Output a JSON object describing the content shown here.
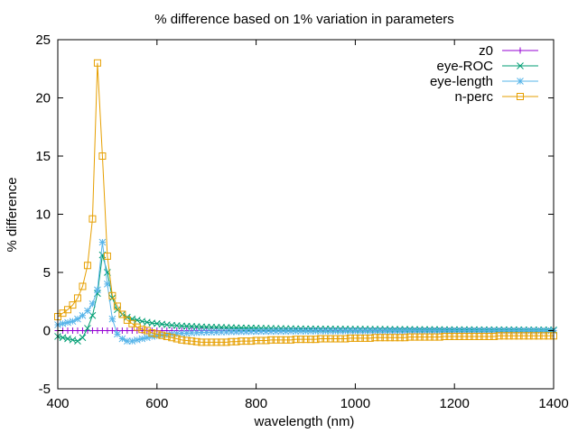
{
  "chart_data": {
    "type": "line",
    "title": "% difference based on 1% variation in parameters",
    "xlabel": "wavelength (nm)",
    "ylabel": "% difference",
    "xlim": [
      400,
      1400
    ],
    "ylim": [
      -5,
      25
    ],
    "xticks": [
      400,
      600,
      800,
      1000,
      1200,
      1400
    ],
    "yticks": [
      -5,
      0,
      5,
      10,
      15,
      20,
      25
    ],
    "grid": false,
    "legend_position": "top-right",
    "x_step": 10,
    "series": [
      {
        "name": "z0",
        "color": "#9400d3",
        "marker": "plus",
        "values": [
          0,
          0,
          0,
          0,
          0,
          0,
          0,
          0,
          0,
          0,
          0,
          0,
          0,
          0,
          0,
          0,
          0,
          0,
          0,
          0,
          0,
          0,
          0,
          0,
          0,
          0,
          0,
          0,
          0,
          0,
          0,
          0,
          0,
          0,
          0,
          0,
          0,
          0,
          0,
          0,
          0,
          0,
          0,
          0,
          0,
          0,
          0,
          0,
          0,
          0,
          0,
          0,
          0,
          0,
          0,
          0,
          0,
          0,
          0,
          0,
          0,
          0,
          0,
          0,
          0,
          0,
          0,
          0,
          0,
          0,
          0,
          0,
          0,
          0,
          0,
          0,
          0,
          0,
          0,
          0,
          0,
          0,
          0,
          0,
          0,
          0,
          0,
          0,
          0,
          0,
          0,
          0,
          0,
          0,
          0,
          0,
          0,
          0,
          0,
          0,
          0
        ]
      },
      {
        "name": "eye-ROC",
        "color": "#009e73",
        "marker": "cross",
        "values": [
          -0.5,
          -0.6,
          -0.7,
          -0.8,
          -0.9,
          -0.6,
          0.2,
          1.3,
          3.2,
          6.5,
          5.0,
          2.8,
          1.8,
          1.4,
          1.15,
          1.0,
          0.9,
          0.8,
          0.72,
          0.65,
          0.6,
          0.55,
          0.5,
          0.46,
          0.43,
          0.4,
          0.38,
          0.36,
          0.34,
          0.32,
          0.3,
          0.29,
          0.28,
          0.27,
          0.26,
          0.25,
          0.24,
          0.23,
          0.22,
          0.22,
          0.21,
          0.2,
          0.2,
          0.19,
          0.18,
          0.18,
          0.17,
          0.17,
          0.16,
          0.16,
          0.15,
          0.15,
          0.15,
          0.14,
          0.14,
          0.14,
          0.13,
          0.13,
          0.13,
          0.12,
          0.12,
          0.12,
          0.12,
          0.11,
          0.11,
          0.11,
          0.11,
          0.1,
          0.1,
          0.1,
          0.1,
          0.1,
          0.09,
          0.09,
          0.09,
          0.09,
          0.09,
          0.09,
          0.08,
          0.08,
          0.08,
          0.08,
          0.08,
          0.08,
          0.08,
          0.07,
          0.07,
          0.07,
          0.07,
          0.07,
          0.07,
          0.07,
          0.07,
          0.07,
          0.06,
          0.06,
          0.06,
          0.06,
          0.06,
          0.06,
          0.06
        ]
      },
      {
        "name": "eye-length",
        "color": "#56b4e9",
        "marker": "star",
        "values": [
          0.5,
          0.6,
          0.7,
          0.8,
          1.0,
          1.3,
          1.7,
          2.3,
          3.5,
          7.6,
          4.0,
          1.0,
          -0.3,
          -0.7,
          -0.9,
          -0.9,
          -0.8,
          -0.7,
          -0.6,
          -0.5,
          -0.45,
          -0.4,
          -0.35,
          -0.3,
          -0.27,
          -0.24,
          -0.22,
          -0.2,
          -0.18,
          -0.16,
          -0.15,
          -0.14,
          -0.13,
          -0.12,
          -0.11,
          -0.1,
          -0.1,
          -0.09,
          -0.09,
          -0.08,
          -0.08,
          -0.07,
          -0.07,
          -0.07,
          -0.06,
          -0.06,
          -0.06,
          -0.05,
          -0.05,
          -0.05,
          -0.05,
          -0.05,
          -0.04,
          -0.04,
          -0.04,
          -0.04,
          -0.04,
          -0.04,
          -0.03,
          -0.03,
          -0.03,
          -0.03,
          -0.03,
          -0.03,
          -0.03,
          -0.03,
          -0.03,
          -0.02,
          -0.02,
          -0.02,
          -0.02,
          -0.02,
          -0.02,
          -0.02,
          -0.02,
          -0.02,
          -0.02,
          -0.02,
          -0.02,
          -0.02,
          -0.01,
          -0.01,
          -0.01,
          -0.01,
          -0.01,
          -0.01,
          -0.01,
          -0.01,
          -0.01,
          -0.01,
          -0.01,
          -0.01,
          -0.01,
          -0.01,
          -0.01,
          -0.01,
          -0.01,
          -0.01,
          -0.01,
          -0.01,
          -0.01
        ]
      },
      {
        "name": "n-perc",
        "color": "#e69f00",
        "marker": "square",
        "values": [
          1.2,
          1.5,
          1.8,
          2.2,
          2.8,
          3.8,
          5.6,
          9.6,
          23.0,
          15.0,
          6.4,
          3.0,
          2.1,
          1.4,
          0.9,
          0.6,
          0.3,
          0.1,
          0.0,
          -0.2,
          -0.3,
          -0.4,
          -0.5,
          -0.6,
          -0.7,
          -0.8,
          -0.85,
          -0.9,
          -0.95,
          -1.0,
          -1.0,
          -1.0,
          -1.0,
          -1.0,
          -1.0,
          -0.95,
          -0.95,
          -0.9,
          -0.9,
          -0.9,
          -0.85,
          -0.85,
          -0.85,
          -0.8,
          -0.8,
          -0.8,
          -0.8,
          -0.8,
          -0.75,
          -0.75,
          -0.75,
          -0.75,
          -0.75,
          -0.7,
          -0.7,
          -0.7,
          -0.7,
          -0.7,
          -0.7,
          -0.65,
          -0.65,
          -0.65,
          -0.65,
          -0.65,
          -0.6,
          -0.6,
          -0.6,
          -0.6,
          -0.6,
          -0.6,
          -0.6,
          -0.55,
          -0.55,
          -0.55,
          -0.55,
          -0.55,
          -0.55,
          -0.55,
          -0.5,
          -0.5,
          -0.5,
          -0.5,
          -0.5,
          -0.5,
          -0.5,
          -0.5,
          -0.5,
          -0.5,
          -0.5,
          -0.45,
          -0.45,
          -0.45,
          -0.45,
          -0.45,
          -0.45,
          -0.45,
          -0.45,
          -0.45,
          -0.45,
          -0.45,
          -0.45
        ]
      }
    ]
  }
}
